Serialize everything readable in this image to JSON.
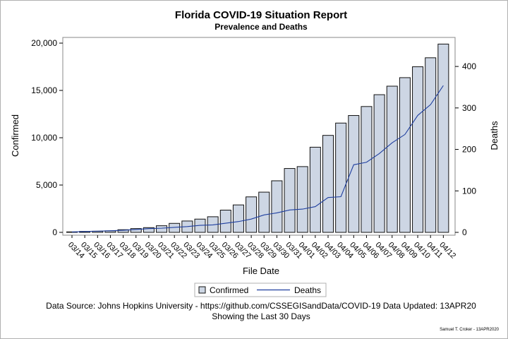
{
  "chart_data": {
    "type": "bar",
    "title": "Florida COVID-19 Situation Report",
    "subtitle": "Prevalence and Deaths",
    "xlabel": "File Date",
    "ylabel": "Confirmed",
    "y2label": "Deaths",
    "ylim": [
      0,
      20600
    ],
    "y2lim": [
      0,
      470
    ],
    "yticks": [
      0,
      5000,
      10000,
      15000,
      20000
    ],
    "ytick_labels": [
      "0",
      "5,000",
      "10,000",
      "15,000",
      "20,000"
    ],
    "y2ticks": [
      0,
      100,
      200,
      300,
      400
    ],
    "y2tick_labels": [
      "0",
      "100",
      "200",
      "300",
      "400"
    ],
    "categories": [
      "03/14",
      "03/15",
      "03/16",
      "03/17",
      "03/18",
      "03/19",
      "03/20",
      "03/21",
      "03/22",
      "03/23",
      "03/24",
      "03/25",
      "03/26",
      "03/27",
      "03/28",
      "03/29",
      "03/30",
      "03/31",
      "04/01",
      "04/02",
      "04/03",
      "04/04",
      "04/05",
      "04/06",
      "04/07",
      "04/08",
      "04/09",
      "04/10",
      "04/11",
      "04/12"
    ],
    "series": [
      {
        "name": "Confirmed",
        "kind": "bar",
        "axis": "left",
        "values": [
          50,
          100,
          120,
          160,
          280,
          400,
          500,
          700,
          950,
          1200,
          1400,
          1650,
          2350,
          2900,
          3750,
          4250,
          5450,
          6750,
          6950,
          9000,
          10250,
          11550,
          12350,
          13300,
          14550,
          15450,
          16350,
          17500,
          18450,
          19900
        ]
      },
      {
        "name": "Deaths",
        "kind": "line",
        "axis": "right",
        "values": [
          1,
          2,
          3,
          4,
          5,
          7,
          9,
          10,
          12,
          14,
          17,
          18,
          22,
          26,
          32,
          42,
          47,
          54,
          56,
          62,
          84,
          86,
          163,
          169,
          190,
          216,
          236,
          282,
          308,
          354
        ]
      }
    ],
    "legend": {
      "position": "bottom-center",
      "entries": [
        "Confirmed",
        "Deaths"
      ]
    },
    "grid": false,
    "colors": {
      "bar_fill": "#cdd6e4",
      "bar_stroke": "#111111",
      "line": "#1f3f9f"
    }
  },
  "footer": {
    "line1": "Data Source: Johns Hopkins University - https://github.com/CSSEGISandData/COVID-19  Data Updated: 13APR20",
    "line2": "Showing the Last 30 Days",
    "credit": "Samuel T. Croker - 13APR2020"
  }
}
